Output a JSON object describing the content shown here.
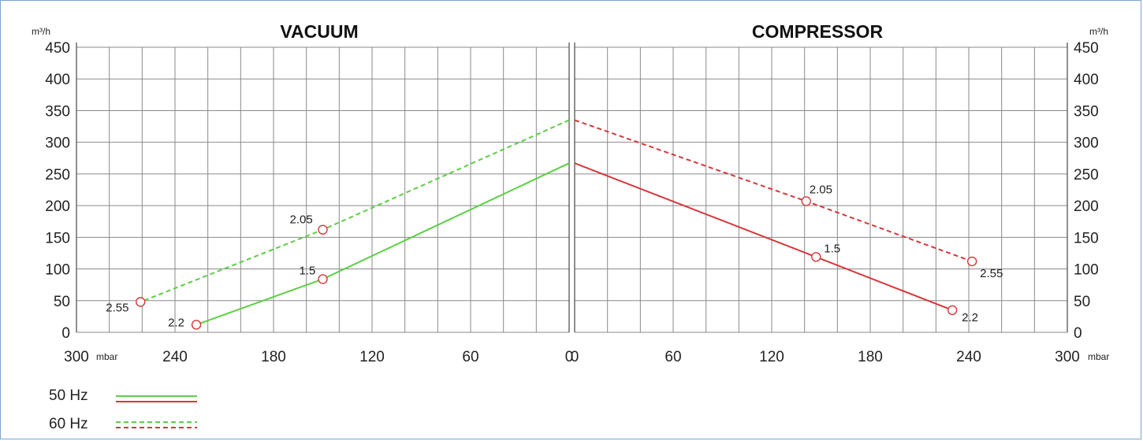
{
  "chart_data": [
    {
      "type": "line",
      "title": "VACUUM",
      "xlabel": "mbar",
      "ylabel": "m³/h",
      "xlim": [
        300,
        0
      ],
      "ylim": [
        0,
        450
      ],
      "xticks": [
        300,
        240,
        180,
        120,
        60,
        0
      ],
      "yticks": [
        0,
        50,
        100,
        150,
        200,
        250,
        300,
        350,
        400,
        450
      ],
      "grid": true,
      "series": [
        {
          "name": "50 Hz",
          "color": "#5ccf45",
          "style": "solid",
          "x": [
            0,
            150,
            227
          ],
          "y": [
            267,
            84,
            12
          ],
          "markers": [
            {
              "x": 150,
              "y": 84,
              "label": "1.5"
            },
            {
              "x": 227,
              "y": 12,
              "label": "2.2"
            }
          ]
        },
        {
          "name": "60 Hz",
          "color": "#5ccf45",
          "style": "dashed",
          "x": [
            0,
            150,
            261
          ],
          "y": [
            335,
            162,
            48
          ],
          "markers": [
            {
              "x": 150,
              "y": 162,
              "label": "2.05"
            },
            {
              "x": 261,
              "y": 48,
              "label": "2.55"
            }
          ]
        }
      ]
    },
    {
      "type": "line",
      "title": "COMPRESSOR",
      "xlabel": "mbar",
      "ylabel": "m³/h",
      "xlim": [
        0,
        300
      ],
      "ylim": [
        0,
        450
      ],
      "xticks": [
        0,
        60,
        120,
        180,
        240,
        300
      ],
      "yticks": [
        0,
        50,
        100,
        150,
        200,
        250,
        300,
        350,
        400,
        450
      ],
      "grid": true,
      "series": [
        {
          "name": "50 Hz",
          "color": "#d9363a",
          "style": "solid",
          "x": [
            0,
            147,
            230
          ],
          "y": [
            267,
            119,
            35
          ],
          "markers": [
            {
              "x": 147,
              "y": 119,
              "label": "1.5"
            },
            {
              "x": 230,
              "y": 35,
              "label": "2.2"
            }
          ]
        },
        {
          "name": "60 Hz",
          "color": "#d9363a",
          "style": "dashed",
          "x": [
            0,
            141,
            242
          ],
          "y": [
            335,
            207,
            112
          ],
          "markers": [
            {
              "x": 141,
              "y": 207,
              "label": "2.05"
            },
            {
              "x": 242,
              "y": 112,
              "label": "2.55"
            }
          ]
        }
      ]
    }
  ],
  "legend": [
    {
      "label": "50 Hz",
      "style": "solid",
      "colors": [
        "#5ccf45",
        "#d9363a"
      ]
    },
    {
      "label": "60 Hz",
      "style": "dashed",
      "colors": [
        "#5ccf45",
        "#d9363a"
      ]
    }
  ]
}
